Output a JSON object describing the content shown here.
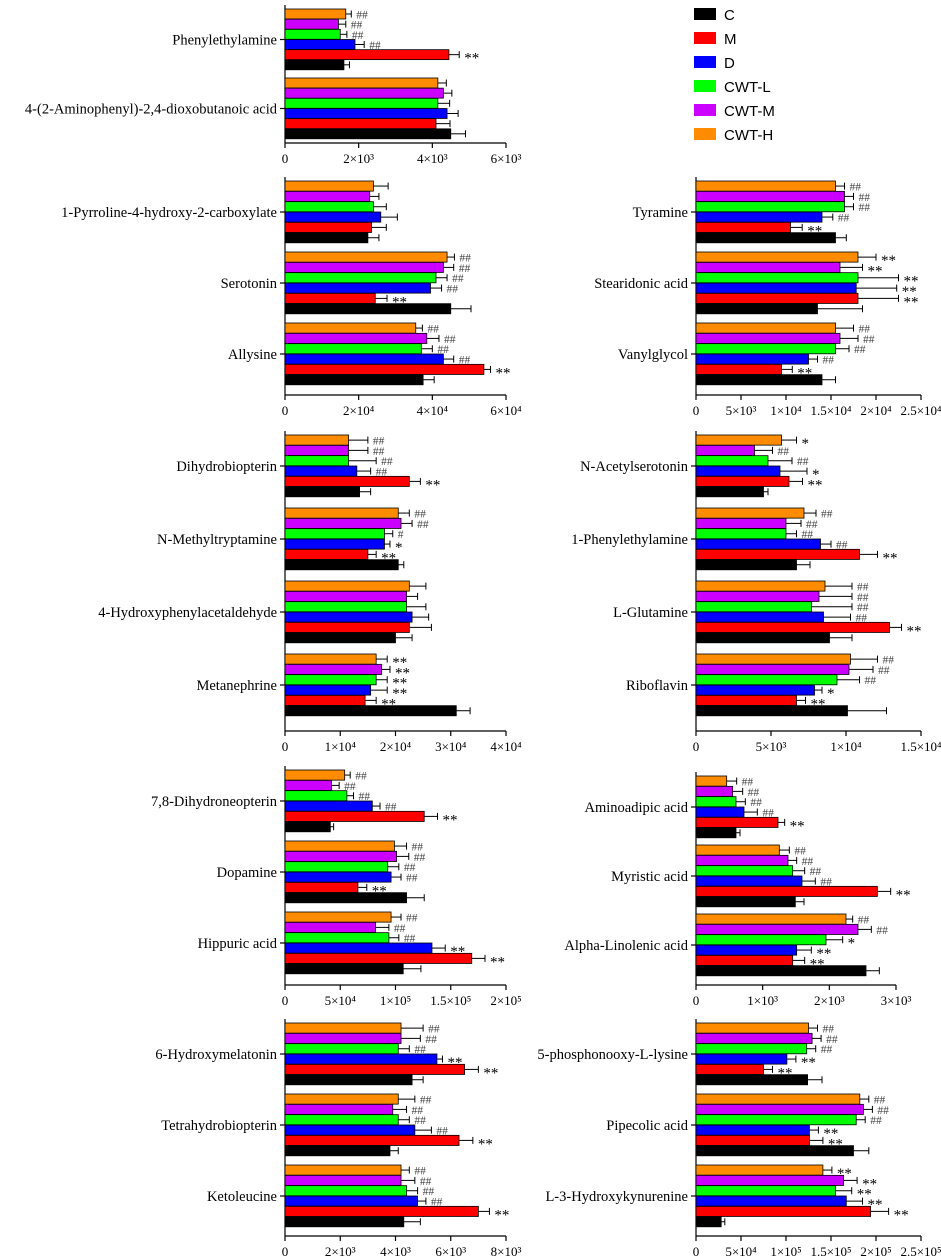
{
  "legend": [
    {
      "name": "C",
      "color": "#000000"
    },
    {
      "name": "M",
      "color": "#ff0000"
    },
    {
      "name": "D",
      "color": "#0000ff"
    },
    {
      "name": "CWT-L",
      "color": "#00ff00"
    },
    {
      "name": "CWT-M",
      "color": "#cc00ff"
    },
    {
      "name": "CWT-H",
      "color": "#ff8c00"
    }
  ],
  "chart_data": [
    {
      "type": "bar",
      "orientation": "horizontal",
      "xlim": [
        0,
        6000
      ],
      "ticks": [
        "0",
        "2×10³",
        "4×10³",
        "6×10³"
      ],
      "categories": [
        {
          "label": "Phenylethylamine",
          "values": [
            1600,
            4450,
            1900,
            1500,
            1450,
            1650
          ],
          "errors": [
            150,
            280,
            250,
            180,
            200,
            150
          ],
          "marks": [
            "",
            "**",
            "##",
            "##",
            "##",
            "##"
          ]
        },
        {
          "label": "4-(2-Aminophenyl)-2,4-dioxobutanoic acid",
          "values": [
            4500,
            4100,
            4400,
            4150,
            4300,
            4150
          ],
          "errors": [
            400,
            380,
            300,
            320,
            230,
            230
          ],
          "marks": [
            "",
            "",
            "",
            "",
            "",
            ""
          ]
        }
      ]
    },
    {
      "type": "bar",
      "orientation": "horizontal",
      "xlim": [
        0,
        60000
      ],
      "ticks": [
        "0",
        "2×10⁴",
        "4×10⁴",
        "6×10⁴"
      ],
      "categories": [
        {
          "label": "1-Pyrroline-4-hydroxy-2-carboxylate",
          "values": [
            22500,
            23500,
            26000,
            24000,
            23000,
            24000
          ],
          "errors": [
            3000,
            4000,
            4500,
            3500,
            2500,
            4000
          ],
          "marks": [
            "",
            "",
            "",
            "",
            "",
            ""
          ]
        },
        {
          "label": "Serotonin",
          "values": [
            45000,
            24500,
            39500,
            41000,
            43000,
            44000
          ],
          "errors": [
            5500,
            3200,
            3000,
            3000,
            2800,
            2000
          ],
          "marks": [
            "",
            "**",
            "##",
            "##",
            "##",
            "##"
          ]
        },
        {
          "label": "Allysine",
          "values": [
            37500,
            54000,
            43000,
            37000,
            38500,
            35500
          ],
          "errors": [
            3000,
            1800,
            2800,
            3000,
            3300,
            1800
          ],
          "marks": [
            "",
            "**",
            "##",
            "##",
            "##",
            "##"
          ]
        }
      ]
    },
    {
      "type": "bar",
      "orientation": "horizontal",
      "xlim": [
        0,
        25000
      ],
      "ticks": [
        "0",
        "5×10³",
        "1×10⁴",
        "1.5×10⁴",
        "2×10⁴",
        "2.5×10⁴"
      ],
      "categories": [
        {
          "label": "Tyramine",
          "values": [
            15500,
            10500,
            14000,
            16500,
            16500,
            15500
          ],
          "errors": [
            1200,
            1300,
            1200,
            1000,
            1000,
            1000
          ],
          "marks": [
            "",
            "**",
            "##",
            "##",
            "##",
            "##"
          ]
        },
        {
          "label": "Stearidonic acid",
          "values": [
            13500,
            18000,
            17800,
            18000,
            16000,
            18000
          ],
          "errors": [
            5000,
            4500,
            4500,
            4500,
            2500,
            2000
          ],
          "marks": [
            "",
            "**",
            "**",
            "**",
            "**",
            "**"
          ]
        },
        {
          "label": "Vanylglycol",
          "values": [
            14000,
            9500,
            12500,
            15500,
            16000,
            15500
          ],
          "errors": [
            1500,
            1200,
            1000,
            1500,
            2000,
            2000
          ],
          "marks": [
            "",
            "**",
            "##",
            "##",
            "##",
            "##"
          ]
        }
      ]
    },
    {
      "type": "bar",
      "orientation": "horizontal",
      "xlim": [
        0,
        40000
      ],
      "ticks": [
        "0",
        "1×10⁴",
        "2×10⁴",
        "3×10⁴",
        "4×10⁴"
      ],
      "categories": [
        {
          "label": "Dihydrobiopterin",
          "values": [
            13500,
            22500,
            13000,
            11500,
            11500,
            11500
          ],
          "errors": [
            2000,
            2000,
            2500,
            5000,
            3500,
            3500
          ],
          "marks": [
            "",
            "**",
            "##",
            "##",
            "##",
            "##"
          ]
        },
        {
          "label": "N-Methyltryptamine",
          "values": [
            20500,
            15000,
            18000,
            18000,
            21000,
            20500
          ],
          "errors": [
            1000,
            1500,
            1000,
            1500,
            2000,
            2000
          ],
          "marks": [
            "",
            "**",
            "*",
            "#",
            "##",
            "##"
          ]
        },
        {
          "label": "4-Hydroxyphenylacetaldehyde",
          "values": [
            20000,
            22500,
            23000,
            22000,
            22000,
            22500
          ],
          "errors": [
            3000,
            4000,
            3000,
            3500,
            2000,
            3000
          ],
          "marks": [
            "",
            "",
            "",
            "",
            "",
            ""
          ]
        },
        {
          "label": "Metanephrine",
          "values": [
            31000,
            14500,
            15500,
            16500,
            17500,
            16500
          ],
          "errors": [
            2500,
            2000,
            3000,
            2000,
            1500,
            2000
          ],
          "marks": [
            "",
            "**",
            "**",
            "**",
            "**",
            "**"
          ]
        }
      ]
    },
    {
      "type": "bar",
      "orientation": "horizontal",
      "xlim": [
        0,
        15000
      ],
      "ticks": [
        "0",
        "5×10³",
        "1×10⁴",
        "1.5×10⁴"
      ],
      "categories": [
        {
          "label": "N-Acetylserotonin",
          "values": [
            4500,
            6200,
            5600,
            4800,
            3900,
            5700
          ],
          "errors": [
            300,
            900,
            1800,
            1600,
            1200,
            1000
          ],
          "marks": [
            "",
            "**",
            "*",
            "##",
            "##",
            "*"
          ]
        },
        {
          "label": "1-Phenylethylamine",
          "values": [
            6700,
            10900,
            8300,
            6000,
            6000,
            7200
          ],
          "errors": [
            900,
            1200,
            700,
            700,
            1000,
            800
          ],
          "marks": [
            "",
            "**",
            "##",
            "##",
            "##",
            "##"
          ]
        },
        {
          "label": "L-Glutamine",
          "values": [
            8900,
            12900,
            8500,
            7700,
            8200,
            8600
          ],
          "errors": [
            1500,
            800,
            1800,
            2700,
            2200,
            1800
          ],
          "marks": [
            "",
            "**",
            "##",
            "##",
            "##",
            "##"
          ]
        },
        {
          "label": "Riboflavin",
          "values": [
            10100,
            6700,
            7900,
            9400,
            10200,
            10300
          ],
          "errors": [
            2600,
            600,
            500,
            1500,
            1600,
            1800
          ],
          "marks": [
            "",
            "**",
            "*",
            "##",
            "##",
            "##"
          ]
        }
      ]
    },
    {
      "type": "bar",
      "orientation": "horizontal",
      "xlim": [
        0,
        200000
      ],
      "ticks": [
        "0",
        "5×10⁴",
        "1×10⁵",
        "1.5×10⁵",
        "2×10⁵"
      ],
      "categories": [
        {
          "label": "7,8-Dihydroneopterin",
          "values": [
            41000,
            126000,
            79000,
            56000,
            42000,
            54000
          ],
          "errors": [
            3000,
            12000,
            7000,
            6000,
            7000,
            5000
          ],
          "marks": [
            "",
            "**",
            "##",
            "##",
            "##",
            "##"
          ]
        },
        {
          "label": "Dopamine",
          "values": [
            110000,
            66000,
            96000,
            93000,
            101000,
            99000
          ],
          "errors": [
            16000,
            8000,
            9000,
            10000,
            11000,
            11000
          ],
          "marks": [
            "",
            "**",
            "##",
            "##",
            "##",
            "##"
          ]
        },
        {
          "label": "Hippuric acid",
          "values": [
            107000,
            169000,
            133000,
            94000,
            82000,
            96000
          ],
          "errors": [
            16000,
            12000,
            12000,
            9000,
            12000,
            9000
          ],
          "marks": [
            "",
            "**",
            "**",
            "##",
            "##",
            "##"
          ]
        }
      ]
    },
    {
      "type": "bar",
      "orientation": "horizontal",
      "xlim": [
        0,
        3000
      ],
      "ticks": [
        "0",
        "1×10³",
        "2×10³",
        "3×10³"
      ],
      "categories": [
        {
          "label": "Aminoadipic acid",
          "values": [
            600,
            1230,
            720,
            600,
            550,
            460
          ],
          "errors": [
            60,
            100,
            200,
            140,
            150,
            150
          ],
          "marks": [
            "",
            "**",
            "##",
            "##",
            "##",
            "##"
          ]
        },
        {
          "label": "Myristic acid",
          "values": [
            1490,
            2720,
            1590,
            1450,
            1380,
            1250
          ],
          "errors": [
            130,
            200,
            200,
            180,
            130,
            150
          ],
          "marks": [
            "",
            "**",
            "##",
            "##",
            "##",
            "##"
          ]
        },
        {
          "label": "Alpha-Linolenic acid",
          "values": [
            2550,
            1450,
            1510,
            1950,
            2430,
            2250
          ],
          "errors": [
            200,
            180,
            220,
            250,
            200,
            100
          ],
          "marks": [
            "",
            "**",
            "**",
            "*",
            "##",
            "##"
          ]
        }
      ]
    },
    {
      "type": "bar",
      "orientation": "horizontal",
      "xlim": [
        0,
        8000
      ],
      "ticks": [
        "0",
        "2×10³",
        "4×10³",
        "6×10³",
        "8×10³"
      ],
      "categories": [
        {
          "label": "6-Hydroxymelatonin",
          "values": [
            4600,
            6500,
            5500,
            4100,
            4200,
            4200
          ],
          "errors": [
            400,
            500,
            200,
            400,
            700,
            800
          ],
          "marks": [
            "",
            "**",
            "**",
            "##",
            "##",
            "##"
          ]
        },
        {
          "label": "Tetrahydrobiopterin",
          "values": [
            3800,
            6300,
            4700,
            4100,
            3900,
            4100
          ],
          "errors": [
            300,
            500,
            600,
            400,
            500,
            600
          ],
          "marks": [
            "",
            "**",
            "##",
            "##",
            "##",
            "##"
          ]
        },
        {
          "label": "Ketoleucine",
          "values": [
            4300,
            7000,
            4800,
            4400,
            4200,
            4200
          ],
          "errors": [
            600,
            400,
            300,
            400,
            500,
            300
          ],
          "marks": [
            "",
            "**",
            "##",
            "##",
            "##",
            "##"
          ]
        }
      ]
    },
    {
      "type": "bar",
      "orientation": "horizontal",
      "xlim": [
        0,
        250000
      ],
      "ticks": [
        "0",
        "5×10⁴",
        "1×10⁵",
        "1.5×10⁵",
        "2×10⁵",
        "2.5×10⁵"
      ],
      "categories": [
        {
          "label": "5-phosphonooxy-L-lysine",
          "values": [
            124000,
            75000,
            101000,
            123000,
            129000,
            125000
          ],
          "errors": [
            16000,
            10000,
            10000,
            10000,
            10000,
            10000
          ],
          "marks": [
            "",
            "**",
            "**",
            "##",
            "##",
            "##"
          ]
        },
        {
          "label": "Pipecolic acid",
          "values": [
            175000,
            126000,
            126000,
            178000,
            186000,
            182000
          ],
          "errors": [
            17000,
            15000,
            10000,
            10000,
            10000,
            10000
          ],
          "marks": [
            "",
            "**",
            "**",
            "##",
            "##",
            "##"
          ]
        },
        {
          "label": "L-3-Hydroxykynurenine",
          "values": [
            28000,
            194000,
            167000,
            155000,
            164000,
            141000
          ],
          "errors": [
            4000,
            20000,
            18000,
            18000,
            15000,
            10000
          ],
          "marks": [
            "",
            "**",
            "**",
            "**",
            "**",
            "**"
          ]
        }
      ]
    }
  ]
}
